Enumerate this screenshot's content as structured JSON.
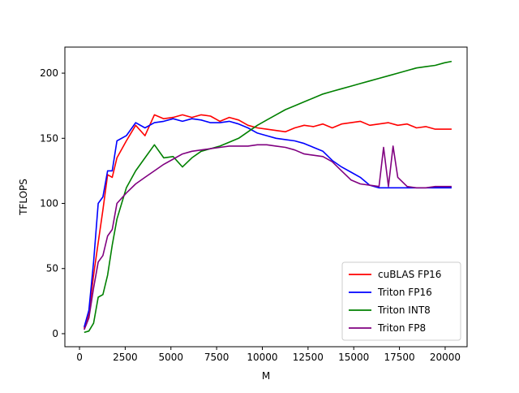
{
  "chart_data": {
    "type": "line",
    "title": "",
    "xlabel": "M",
    "ylabel": "TFLOPS",
    "xlim": [
      -800,
      21200
    ],
    "ylim": [
      -10,
      220
    ],
    "xticks": [
      0,
      2500,
      5000,
      7500,
      10000,
      12500,
      15000,
      17500,
      20000
    ],
    "yticks": [
      0,
      50,
      100,
      150,
      200
    ],
    "grid": false,
    "legend_position": "lower-right",
    "series": [
      {
        "name": "cuBLAS FP16",
        "color": "#ff0000",
        "x": [
          256,
          512,
          768,
          1024,
          1280,
          1536,
          1792,
          2048,
          2560,
          3072,
          3584,
          4096,
          4608,
          5120,
          5632,
          6144,
          6656,
          7168,
          7680,
          8192,
          8704,
          9216,
          9728,
          10240,
          10752,
          11264,
          11776,
          12288,
          12800,
          13312,
          13824,
          14336,
          14848,
          15360,
          15872,
          16384,
          16896,
          17408,
          17920,
          18432,
          18944,
          19456,
          19968,
          20352
        ],
        "y": [
          4,
          15,
          45,
          70,
          95,
          122,
          120,
          135,
          148,
          160,
          152,
          168,
          165,
          166,
          168,
          166,
          168,
          167,
          163,
          166,
          164,
          160,
          158,
          157,
          156,
          155,
          158,
          160,
          159,
          161,
          158,
          161,
          162,
          163,
          160,
          161,
          162,
          160,
          161,
          158,
          159,
          157,
          157,
          157
        ]
      },
      {
        "name": "Triton FP16",
        "color": "#0000ff",
        "x": [
          256,
          512,
          768,
          1024,
          1280,
          1536,
          1792,
          2048,
          2560,
          3072,
          3584,
          4096,
          4608,
          5120,
          5632,
          6144,
          6656,
          7168,
          7680,
          8192,
          8704,
          9216,
          9728,
          10240,
          10752,
          11264,
          11776,
          12288,
          12800,
          13312,
          13824,
          14336,
          14848,
          15360,
          15872,
          16384,
          16896,
          17408,
          17920,
          18432,
          18944,
          19456,
          19968,
          20352
        ],
        "y": [
          5,
          18,
          55,
          100,
          105,
          125,
          125,
          148,
          152,
          162,
          158,
          162,
          163,
          165,
          163,
          165,
          164,
          162,
          162,
          163,
          161,
          158,
          154,
          152,
          150,
          149,
          148,
          146,
          143,
          140,
          133,
          128,
          124,
          120,
          114,
          112,
          112,
          112,
          112,
          112,
          112,
          112,
          112,
          112
        ]
      },
      {
        "name": "Triton INT8",
        "color": "#008000",
        "x": [
          256,
          512,
          768,
          1024,
          1280,
          1536,
          1792,
          2048,
          2560,
          3072,
          3584,
          4096,
          4608,
          5120,
          5632,
          6144,
          6656,
          7168,
          7680,
          8192,
          8704,
          9216,
          9728,
          10240,
          10752,
          11264,
          11776,
          12288,
          12800,
          13312,
          13824,
          14336,
          14848,
          15360,
          15872,
          16384,
          16896,
          17408,
          17920,
          18432,
          18944,
          19456,
          19968,
          20352
        ],
        "y": [
          1,
          2,
          8,
          28,
          30,
          45,
          68,
          88,
          112,
          125,
          135,
          145,
          135,
          136,
          128,
          135,
          140,
          142,
          144,
          147,
          150,
          155,
          160,
          164,
          168,
          172,
          175,
          178,
          181,
          184,
          186,
          188,
          190,
          192,
          194,
          196,
          198,
          200,
          202,
          204,
          205,
          206,
          208,
          209
        ]
      },
      {
        "name": "Triton FP8",
        "color": "#800080",
        "x": [
          256,
          512,
          768,
          1024,
          1280,
          1536,
          1792,
          2048,
          2560,
          3072,
          3584,
          4096,
          4608,
          5120,
          5632,
          6144,
          6656,
          7168,
          7680,
          8192,
          8704,
          9216,
          9728,
          10240,
          10752,
          11264,
          11776,
          12288,
          12800,
          13312,
          13824,
          14336,
          14848,
          15360,
          15872,
          16384,
          16632,
          16896,
          17152,
          17408,
          17920,
          18432,
          18944,
          19456,
          19968,
          20352
        ],
        "y": [
          3,
          12,
          35,
          55,
          60,
          75,
          80,
          100,
          108,
          115,
          120,
          125,
          130,
          134,
          138,
          140,
          141,
          142,
          143,
          144,
          144,
          144,
          145,
          145,
          144,
          143,
          141,
          138,
          137,
          136,
          132,
          125,
          118,
          115,
          114,
          113,
          143,
          113,
          144,
          120,
          113,
          112,
          112,
          113,
          113,
          113
        ]
      }
    ]
  }
}
